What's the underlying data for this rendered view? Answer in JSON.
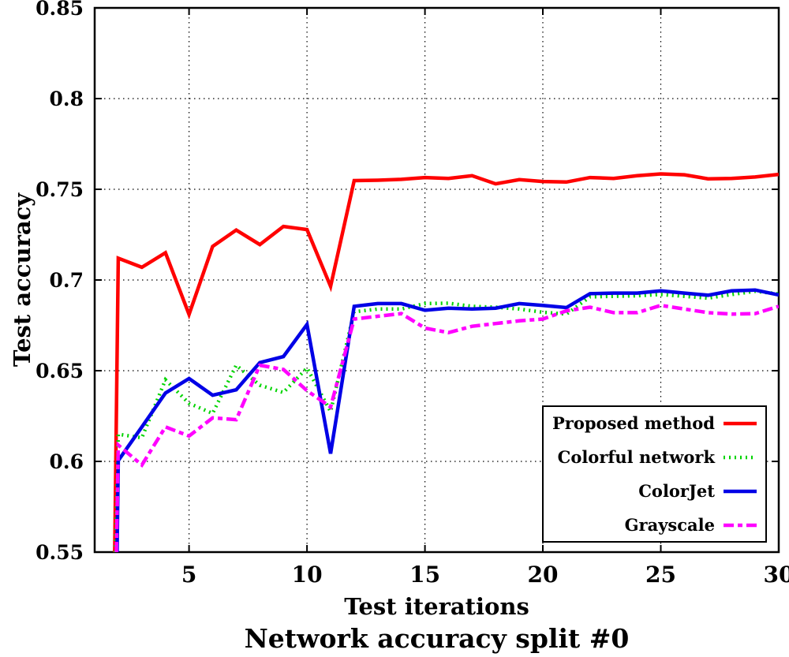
{
  "page": {
    "background": "#ffffff"
  },
  "chart_data": {
    "type": "line",
    "title": "Network accuracy split #0",
    "xlabel": "Test iterations",
    "ylabel": "Test accuracy",
    "xlim": [
      1,
      30
    ],
    "ylim": [
      0.55,
      0.85
    ],
    "x_ticks": [
      5,
      10,
      15,
      20,
      25,
      30
    ],
    "x_tick_labels": [
      "5",
      "10",
      "15",
      "20",
      "25",
      "30"
    ],
    "y_ticks": [
      0.55,
      0.6,
      0.65,
      0.7,
      0.75,
      0.8,
      0.85
    ],
    "y_tick_labels": [
      "0.55",
      "0.6",
      "0.65",
      "0.7",
      "0.75",
      "0.8",
      "0.85"
    ],
    "grid": true,
    "grid_style": "dotted",
    "legend_position": "bottom-right",
    "axis_color": "#000000",
    "series": [
      {
        "name": "Proposed method",
        "color": "#ff0000",
        "dash": "solid",
        "x": [
          1.85,
          2,
          3,
          4,
          5,
          6,
          7,
          8,
          9,
          10,
          11,
          12,
          13,
          14,
          15,
          16,
          17,
          18,
          19,
          20,
          21,
          22,
          23,
          24,
          25,
          26,
          27,
          28,
          29,
          30
        ],
        "y": [
          0.55,
          0.712,
          0.707,
          0.715,
          0.681,
          0.7185,
          0.7275,
          0.7195,
          0.7295,
          0.7278,
          0.6965,
          0.7548,
          0.755,
          0.7555,
          0.7565,
          0.756,
          0.7575,
          0.753,
          0.7553,
          0.7543,
          0.754,
          0.7565,
          0.756,
          0.7575,
          0.7585,
          0.758,
          0.7558,
          0.756,
          0.7568,
          0.7582
        ]
      },
      {
        "name": "Colorful network",
        "color": "#00d400",
        "dash": "dotted",
        "x": [
          1.88,
          2,
          3,
          4,
          5,
          6,
          7,
          8,
          9,
          10,
          11,
          12,
          13,
          14,
          15,
          16,
          17,
          18,
          19,
          20,
          21,
          22,
          23,
          24,
          25,
          26,
          27,
          28,
          29,
          30
        ],
        "y": [
          0.55,
          0.615,
          0.613,
          0.645,
          0.632,
          0.6265,
          0.653,
          0.642,
          0.638,
          0.6515,
          0.6275,
          0.6825,
          0.684,
          0.684,
          0.687,
          0.6872,
          0.6855,
          0.685,
          0.684,
          0.6822,
          0.6812,
          0.6907,
          0.691,
          0.6913,
          0.692,
          0.691,
          0.69,
          0.692,
          0.6938,
          0.6923
        ]
      },
      {
        "name": "ColorJet",
        "color": "#0000e6",
        "dash": "solid",
        "x": [
          1.95,
          2,
          3,
          4,
          5,
          6,
          7,
          8,
          9,
          10,
          11,
          12,
          13,
          14,
          15,
          16,
          17,
          18,
          19,
          20,
          21,
          22,
          23,
          24,
          25,
          26,
          27,
          28,
          29,
          30
        ],
        "y": [
          0.55,
          0.6005,
          0.619,
          0.6377,
          0.6457,
          0.6365,
          0.6395,
          0.6545,
          0.6578,
          0.6755,
          0.6043,
          0.6855,
          0.687,
          0.687,
          0.6833,
          0.6845,
          0.684,
          0.6845,
          0.687,
          0.686,
          0.6848,
          0.6925,
          0.6928,
          0.6928,
          0.694,
          0.6928,
          0.6916,
          0.694,
          0.6945,
          0.6918
        ]
      },
      {
        "name": "Grayscale",
        "color": "#ff00ff",
        "dash": "dashdot",
        "x": [
          1.92,
          2,
          3,
          4,
          5,
          6,
          7,
          8,
          9,
          10,
          11,
          12,
          13,
          14,
          15,
          16,
          17,
          18,
          19,
          20,
          21,
          22,
          23,
          24,
          25,
          26,
          27,
          28,
          29,
          30
        ],
        "y": [
          0.55,
          0.609,
          0.598,
          0.619,
          0.614,
          0.624,
          0.623,
          0.653,
          0.6507,
          0.639,
          0.63,
          0.6785,
          0.68,
          0.6815,
          0.6735,
          0.671,
          0.6745,
          0.676,
          0.6775,
          0.6785,
          0.683,
          0.685,
          0.682,
          0.682,
          0.686,
          0.684,
          0.682,
          0.6812,
          0.6815,
          0.6855
        ]
      }
    ]
  }
}
